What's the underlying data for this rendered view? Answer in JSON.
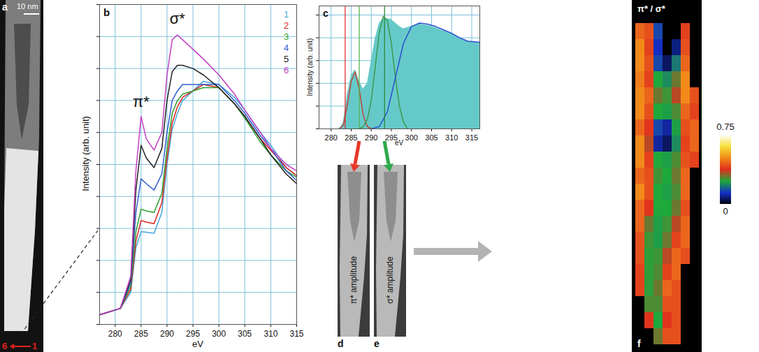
{
  "chart_data": [
    {
      "type": "line",
      "panel": "b",
      "xlabel": "eV",
      "ylabel": "Intensity (arb. unit)",
      "xlim": [
        277,
        315
      ],
      "xticks": [
        280,
        285,
        290,
        295,
        300,
        305,
        310,
        315
      ],
      "ylim": [
        0,
        1
      ],
      "yticks": [
        0,
        0.1,
        0.2,
        0.3,
        0.4,
        0.5,
        0.6,
        0.7,
        0.8,
        0.9,
        1
      ],
      "grid": true,
      "tick_labels": "x",
      "legend": "top-right",
      "x": [
        277,
        281,
        283,
        284,
        285,
        286,
        287.5,
        289,
        290,
        291,
        292,
        293,
        295,
        297,
        300,
        303,
        305,
        308,
        310,
        313,
        315
      ],
      "series": [
        {
          "name": "1",
          "color": "#46a6de",
          "values": [
            0.03,
            0.05,
            0.1,
            0.24,
            0.29,
            0.288,
            0.285,
            0.35,
            0.5,
            0.61,
            0.66,
            0.7,
            0.73,
            0.76,
            0.75,
            0.71,
            0.67,
            0.6,
            0.56,
            0.49,
            0.465
          ]
        },
        {
          "name": "2",
          "color": "#e0231e",
          "values": [
            0.03,
            0.05,
            0.11,
            0.26,
            0.325,
            0.32,
            0.315,
            0.38,
            0.52,
            0.63,
            0.68,
            0.71,
            0.73,
            0.75,
            0.74,
            0.69,
            0.65,
            0.58,
            0.545,
            0.49,
            0.465
          ]
        },
        {
          "name": "3",
          "color": "#2ca02c",
          "values": [
            0.03,
            0.05,
            0.12,
            0.29,
            0.36,
            0.355,
            0.35,
            0.41,
            0.55,
            0.66,
            0.7,
            0.72,
            0.73,
            0.74,
            0.74,
            0.69,
            0.645,
            0.57,
            0.53,
            0.48,
            0.46
          ]
        },
        {
          "name": "4",
          "color": "#2f5fd0",
          "values": [
            0.03,
            0.05,
            0.13,
            0.35,
            0.455,
            0.44,
            0.42,
            0.47,
            0.6,
            0.7,
            0.73,
            0.75,
            0.75,
            0.75,
            0.75,
            0.7,
            0.66,
            0.59,
            0.55,
            0.48,
            0.45
          ]
        },
        {
          "name": "5",
          "color": "#222222",
          "values": [
            0.03,
            0.05,
            0.14,
            0.42,
            0.56,
            0.52,
            0.49,
            0.55,
            0.7,
            0.79,
            0.81,
            0.81,
            0.8,
            0.78,
            0.74,
            0.69,
            0.65,
            0.58,
            0.53,
            0.47,
            0.44
          ]
        },
        {
          "name": "6",
          "color": "#c23fc2",
          "values": [
            0.03,
            0.05,
            0.15,
            0.48,
            0.65,
            0.58,
            0.545,
            0.6,
            0.78,
            0.89,
            0.905,
            0.89,
            0.86,
            0.83,
            0.78,
            0.72,
            0.67,
            0.6,
            0.55,
            0.5,
            0.48
          ]
        }
      ],
      "annotations": [
        {
          "text": "π*",
          "x": 285,
          "y": 0.68
        },
        {
          "text": "σ*",
          "x": 292,
          "y": 0.94
        }
      ]
    },
    {
      "type": "line",
      "panel": "c",
      "xlabel": "eV",
      "ylabel": "Intensity (arb. unit)",
      "xlim": [
        277,
        317
      ],
      "xticks": [
        280,
        285,
        290,
        295,
        300,
        305,
        310,
        315
      ],
      "ylim": [
        0,
        1.08
      ],
      "yticks": [
        0,
        0.2,
        0.4,
        0.6,
        0.8,
        1
      ],
      "grid": true,
      "tick_labels": "x",
      "series": [
        {
          "type": "area",
          "color": "#66c9c9",
          "x": [
            277,
            282,
            283,
            284,
            285,
            286,
            287,
            288,
            289,
            290,
            291,
            292,
            293,
            294,
            295,
            296,
            297,
            298,
            300,
            302,
            304,
            306,
            308,
            310,
            312,
            314,
            317
          ],
          "values": [
            0,
            0,
            0.05,
            0.3,
            0.47,
            0.52,
            0.42,
            0.35,
            0.4,
            0.6,
            0.8,
            0.93,
            0.97,
            0.97,
            0.96,
            0.93,
            0.9,
            0.88,
            0.9,
            0.92,
            0.91,
            0.89,
            0.86,
            0.84,
            0.8,
            0.77,
            0.76
          ]
        },
        {
          "type": "line",
          "color": "#b8473a",
          "x": [
            282,
            283,
            284,
            285,
            286,
            287,
            288,
            289,
            290
          ],
          "values": [
            0,
            0.03,
            0.2,
            0.42,
            0.5,
            0.35,
            0.12,
            0.02,
            0
          ]
        },
        {
          "type": "line",
          "color": "#3a9a4a",
          "x": [
            287,
            288,
            289,
            290,
            291,
            292,
            293,
            294,
            295,
            296,
            297,
            298,
            299
          ],
          "values": [
            0,
            0.02,
            0.08,
            0.25,
            0.55,
            0.85,
            0.99,
            0.95,
            0.75,
            0.45,
            0.2,
            0.06,
            0
          ]
        },
        {
          "type": "line",
          "color": "#2a4fcf",
          "x": [
            290,
            292,
            294,
            296,
            298,
            300,
            302,
            304,
            306,
            308,
            310,
            312,
            314,
            317
          ],
          "values": [
            0,
            0.02,
            0.15,
            0.45,
            0.75,
            0.9,
            0.93,
            0.92,
            0.9,
            0.87,
            0.84,
            0.8,
            0.77,
            0.76
          ]
        }
      ],
      "vlines": [
        {
          "x": 283.5,
          "color": "#e03030"
        },
        {
          "x": 287,
          "color": "#55b055"
        },
        {
          "x": 293.3,
          "color": "#2a8a3a"
        }
      ]
    },
    {
      "type": "heatmap",
      "panel": "f",
      "title": "π* / σ*",
      "tick_labels": false,
      "cells": [
        [
          0.45,
          0.42,
          0.15,
          null,
          null,
          0.4,
          null
        ],
        [
          0.5,
          0.4,
          0.12,
          null,
          0.08,
          0.42,
          null
        ],
        [
          0.5,
          0.42,
          0.15,
          0.06,
          0.2,
          0.45,
          null
        ],
        [
          0.48,
          0.4,
          0.25,
          0.22,
          0.3,
          0.5,
          null
        ],
        [
          0.5,
          0.45,
          0.3,
          0.27,
          0.35,
          0.5,
          0.42
        ],
        [
          0.5,
          0.42,
          0.25,
          0.24,
          0.28,
          0.45,
          0.4
        ],
        [
          0.45,
          0.38,
          0.15,
          0.1,
          0.24,
          0.42,
          0.45
        ],
        [
          0.5,
          0.35,
          0.1,
          0.06,
          0.22,
          0.4,
          0.45
        ],
        [
          0.5,
          0.4,
          0.25,
          0.24,
          0.28,
          0.42,
          0.4
        ],
        [
          0.45,
          0.42,
          0.27,
          0.25,
          0.3,
          0.45,
          null
        ],
        [
          0.5,
          0.42,
          0.25,
          0.24,
          0.28,
          0.45,
          null
        ],
        [
          0.45,
          0.38,
          0.25,
          0.25,
          0.3,
          0.42,
          null
        ],
        [
          0.45,
          0.3,
          0.24,
          0.27,
          0.35,
          0.45,
          null
        ],
        [
          0.42,
          0.27,
          0.24,
          0.3,
          0.4,
          0.45,
          null
        ],
        [
          0.42,
          0.26,
          0.27,
          0.35,
          0.45,
          0.42,
          null
        ],
        [
          0.4,
          0.26,
          0.28,
          0.4,
          0.45,
          null,
          null
        ],
        [
          0.4,
          0.26,
          0.3,
          0.45,
          0.42,
          null,
          null
        ],
        [
          null,
          0.28,
          0.28,
          0.42,
          0.42,
          null,
          null
        ],
        [
          null,
          0.38,
          0.25,
          0.38,
          0.42,
          null,
          null
        ],
        [
          null,
          null,
          0.3,
          0.42,
          0.42,
          null,
          null
        ]
      ],
      "colorbar_range": [
        0,
        0.75
      ],
      "colorbar_ticks": [
        0,
        0.75
      ],
      "colors": [
        "#000000",
        "#1530c8",
        "#1fa83c",
        "#e0301e",
        "#f28a1a",
        "#f7e03a",
        "#ffffff"
      ]
    }
  ],
  "images": [
    {
      "panel": "a",
      "scale_bar": "10 nm",
      "labels": [
        "6",
        "1"
      ]
    },
    {
      "panel": "d",
      "label": "π* amplitude"
    },
    {
      "panel": "e",
      "label": "σ* amplitude"
    }
  ]
}
